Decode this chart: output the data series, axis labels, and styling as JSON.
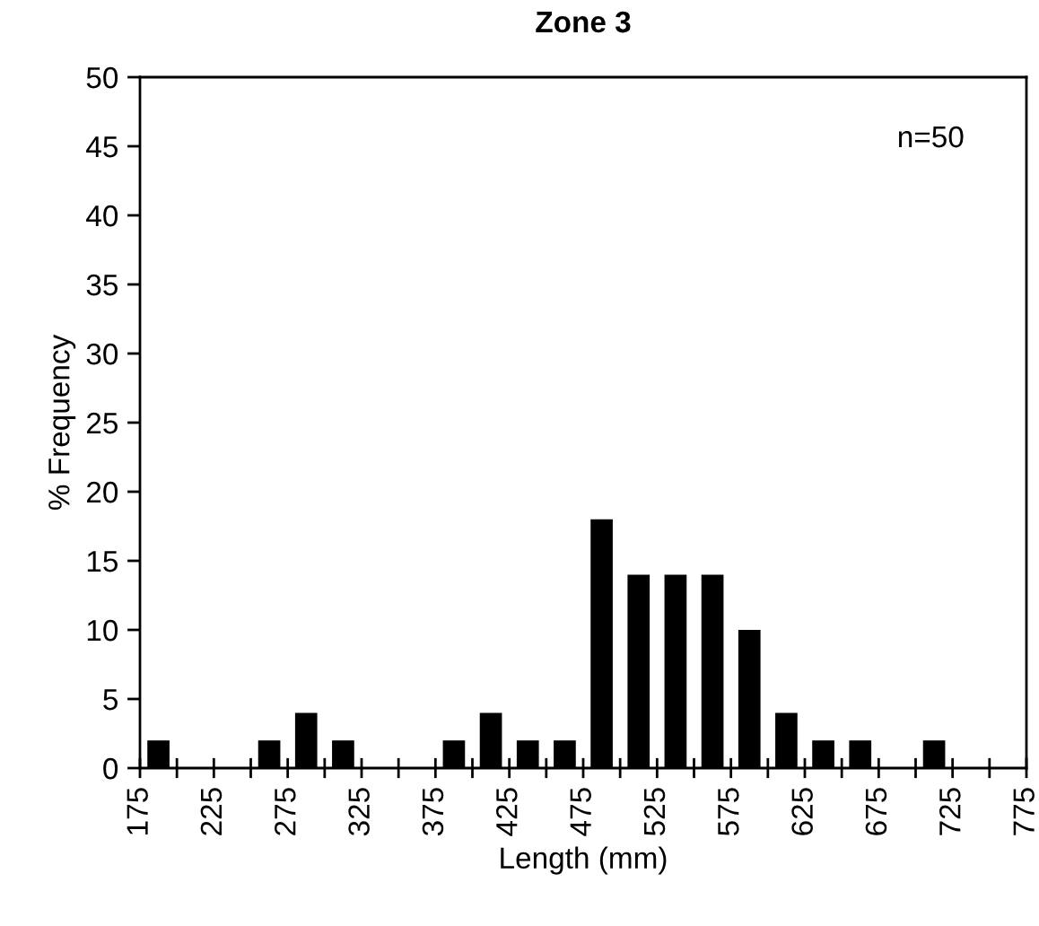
{
  "chart_data": {
    "type": "histogram",
    "title": "Zone 3",
    "xlabel": "Length (mm)",
    "ylabel": "% Frequency",
    "bins": [
      175,
      200,
      225,
      250,
      275,
      300,
      325,
      350,
      375,
      400,
      425,
      450,
      475,
      500,
      525,
      550,
      575,
      600,
      625,
      650,
      675,
      700,
      725,
      750,
      775
    ],
    "values": [
      2,
      0,
      0,
      2,
      4,
      2,
      0,
      0,
      2,
      4,
      2,
      2,
      18,
      14,
      14,
      14,
      10,
      4,
      2,
      2,
      0,
      2,
      0,
      0
    ],
    "color": "#000000",
    "xlim": [
      175,
      775
    ],
    "xticks": [
      175,
      {
        "value": 200,
        "label": null
      },
      225,
      {
        "value": 250,
        "label": null
      },
      275,
      {
        "value": 300,
        "label": null
      },
      325,
      {
        "value": 350,
        "label": null
      },
      375,
      {
        "value": 400,
        "label": null
      },
      425,
      {
        "value": 450,
        "label": null
      },
      475,
      {
        "value": 500,
        "label": null
      },
      525,
      {
        "value": 550,
        "label": null
      },
      575,
      {
        "value": 600,
        "label": null
      },
      625,
      {
        "value": 650,
        "label": null
      },
      675,
      {
        "value": 700,
        "label": null
      },
      725,
      {
        "value": 750,
        "label": null
      },
      775
    ],
    "ylim": [
      0,
      50
    ],
    "yticks": [
      0,
      5,
      10,
      15,
      20,
      25,
      30,
      35,
      40,
      45,
      50
    ],
    "grid": false,
    "annotations": [
      "n=50"
    ]
  }
}
